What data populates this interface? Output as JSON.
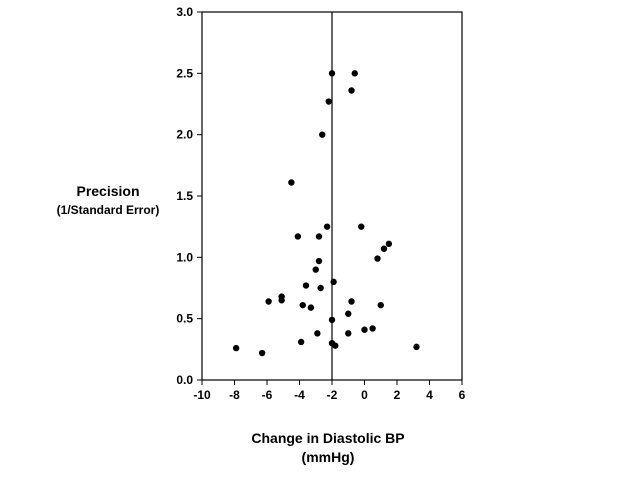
{
  "chart_data": {
    "type": "scatter",
    "title": "",
    "ylabel_line1": "Precision",
    "ylabel_line2": "(1/Standard Error)",
    "xlabel_line1": "Change in Diastolic BP",
    "xlabel_line2": "(mmHg)",
    "xlim": [
      -10,
      6
    ],
    "ylim": [
      0,
      3.0
    ],
    "x_ticks": [
      "-10",
      "-8",
      "-6",
      "-4",
      "-2",
      "0",
      "2",
      "4",
      "6"
    ],
    "y_ticks": [
      "0.0",
      "0.5",
      "1.0",
      "1.5",
      "2.0",
      "2.5",
      "3.0"
    ],
    "reference_line_x": -2,
    "grid": false,
    "points": [
      {
        "x": -2.0,
        "y": 2.5
      },
      {
        "x": -0.6,
        "y": 2.5
      },
      {
        "x": -0.8,
        "y": 2.36
      },
      {
        "x": -2.2,
        "y": 2.27
      },
      {
        "x": -2.6,
        "y": 2.0
      },
      {
        "x": -4.5,
        "y": 1.61
      },
      {
        "x": -2.3,
        "y": 1.25
      },
      {
        "x": -0.2,
        "y": 1.25
      },
      {
        "x": -4.1,
        "y": 1.17
      },
      {
        "x": -2.8,
        "y": 1.17
      },
      {
        "x": 1.5,
        "y": 1.11
      },
      {
        "x": 1.2,
        "y": 1.07
      },
      {
        "x": 0.8,
        "y": 0.99
      },
      {
        "x": -2.8,
        "y": 0.97
      },
      {
        "x": -3.0,
        "y": 0.9
      },
      {
        "x": -1.9,
        "y": 0.8
      },
      {
        "x": -3.6,
        "y": 0.77
      },
      {
        "x": -2.7,
        "y": 0.75
      },
      {
        "x": -5.9,
        "y": 0.64
      },
      {
        "x": -5.1,
        "y": 0.65
      },
      {
        "x": -5.1,
        "y": 0.68
      },
      {
        "x": -0.8,
        "y": 0.64
      },
      {
        "x": -3.8,
        "y": 0.61
      },
      {
        "x": -3.3,
        "y": 0.59
      },
      {
        "x": 1.0,
        "y": 0.61
      },
      {
        "x": -1.0,
        "y": 0.54
      },
      {
        "x": -2.0,
        "y": 0.49
      },
      {
        "x": 0.0,
        "y": 0.41
      },
      {
        "x": 0.5,
        "y": 0.42
      },
      {
        "x": -2.9,
        "y": 0.38
      },
      {
        "x": -1.0,
        "y": 0.38
      },
      {
        "x": -3.9,
        "y": 0.31
      },
      {
        "x": -2.0,
        "y": 0.3
      },
      {
        "x": -1.8,
        "y": 0.28
      },
      {
        "x": -7.9,
        "y": 0.26
      },
      {
        "x": -6.3,
        "y": 0.22
      },
      {
        "x": 3.2,
        "y": 0.27
      }
    ]
  }
}
